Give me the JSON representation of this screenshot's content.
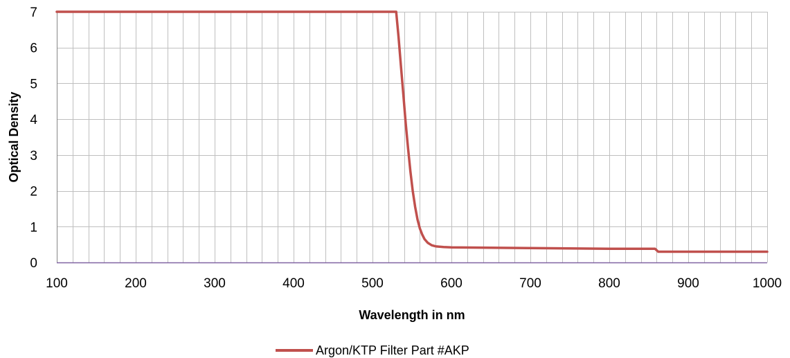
{
  "chart_data": {
    "type": "line",
    "title": "",
    "xlabel": "Wavelength in nm",
    "ylabel": "Optical Density",
    "xlim": [
      100,
      1000
    ],
    "ylim": [
      0,
      7
    ],
    "x_ticks": [
      100,
      200,
      300,
      400,
      500,
      600,
      700,
      800,
      900,
      1000
    ],
    "y_ticks": [
      0,
      1,
      2,
      3,
      4,
      5,
      6,
      7
    ],
    "x_minor_step": 20,
    "grid": true,
    "legend_position": "bottom",
    "colors": {
      "series": "#c0504d",
      "grid": "#bfbfbf",
      "x_axis": "#8064a2"
    },
    "series": [
      {
        "name": "Argon/KTP Filter Part #AKP",
        "x": [
          100,
          200,
          300,
          400,
          500,
          525,
          530,
          533,
          536,
          539,
          542,
          545,
          548,
          551,
          554,
          557,
          560,
          563,
          566,
          570,
          575,
          580,
          590,
          600,
          650,
          700,
          750,
          800,
          850,
          858,
          862,
          870,
          900,
          950,
          1000
        ],
        "y": [
          7,
          7,
          7,
          7,
          7,
          7,
          7,
          6.3,
          5.5,
          4.7,
          3.9,
          3.2,
          2.55,
          2.0,
          1.55,
          1.2,
          0.95,
          0.78,
          0.65,
          0.55,
          0.48,
          0.45,
          0.43,
          0.42,
          0.41,
          0.4,
          0.39,
          0.38,
          0.38,
          0.38,
          0.3,
          0.3,
          0.3,
          0.3,
          0.3
        ]
      }
    ]
  }
}
